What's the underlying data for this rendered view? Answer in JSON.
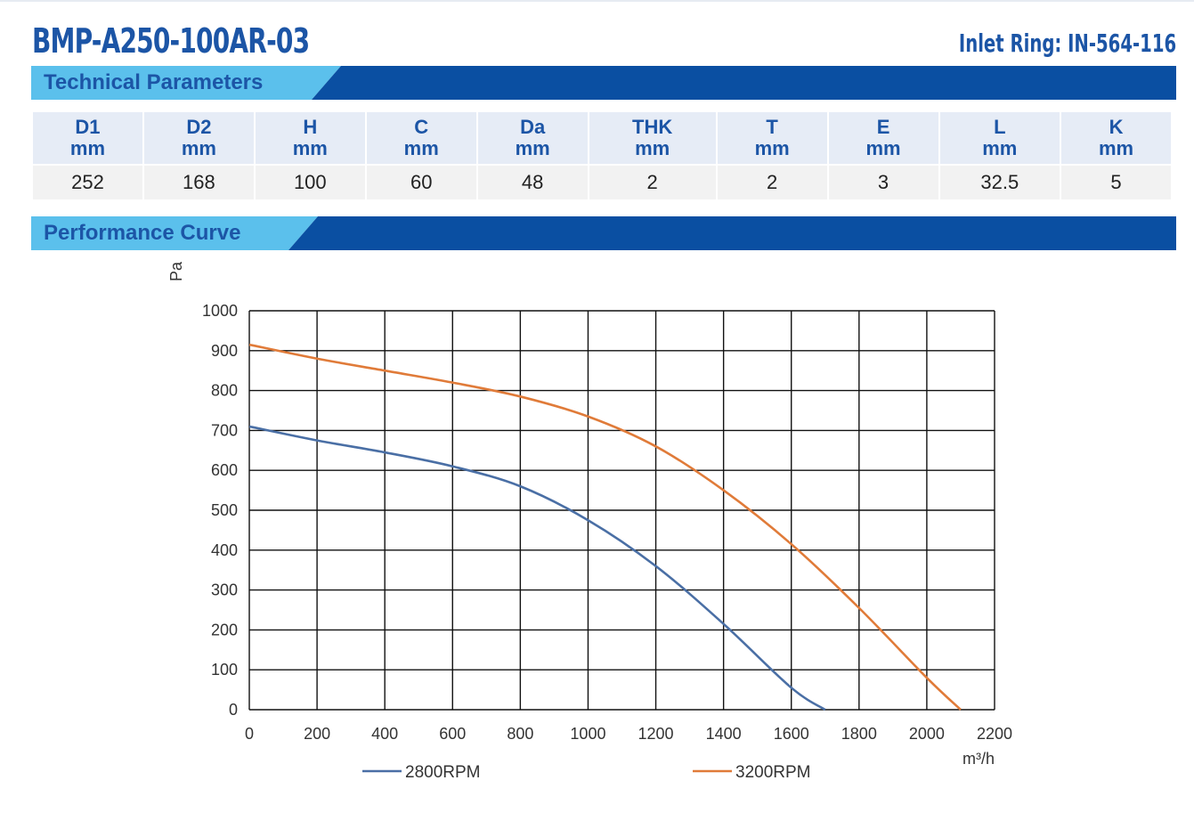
{
  "header": {
    "model": "BMP-A250-100AR-03",
    "inlet_ring": "Inlet Ring: IN-564-116"
  },
  "sections": {
    "technical": "Technical Parameters",
    "performance": "Performance Curve"
  },
  "params": {
    "columns": [
      {
        "name": "D1",
        "unit": "mm",
        "value": "252"
      },
      {
        "name": "D2",
        "unit": "mm",
        "value": "168"
      },
      {
        "name": "H",
        "unit": "mm",
        "value": "100"
      },
      {
        "name": "C",
        "unit": "mm",
        "value": "60"
      },
      {
        "name": "Da",
        "unit": "mm",
        "value": "48"
      },
      {
        "name": "THK",
        "unit": "mm",
        "value": "2"
      },
      {
        "name": "T",
        "unit": "mm",
        "value": "2"
      },
      {
        "name": "E",
        "unit": "mm",
        "value": "3"
      },
      {
        "name": "L",
        "unit": "mm",
        "value": "32.5"
      },
      {
        "name": "K",
        "unit": "mm",
        "value": "5"
      }
    ]
  },
  "colors": {
    "brand_blue": "#1c55a6",
    "band_light": "#5bc0ec",
    "band_dark": "#0a4fa2",
    "series_2800": "#4a6fa5",
    "series_3200": "#e07b39"
  },
  "chart_data": {
    "type": "line",
    "title": "",
    "xlabel": "m³/h",
    "ylabel": "Pa",
    "xlim": [
      0,
      2200
    ],
    "ylim": [
      0,
      1000
    ],
    "xticks": [
      "0",
      "200",
      "400",
      "600",
      "800",
      "1000",
      "1200",
      "1400",
      "1600",
      "1800",
      "2000",
      "2200"
    ],
    "yticks": [
      "0",
      "100",
      "200",
      "300",
      "400",
      "500",
      "600",
      "700",
      "800",
      "900",
      "1000"
    ],
    "grid": true,
    "legend": "bottom",
    "series": [
      {
        "name": "2800RPM",
        "color": "#4a6fa5",
        "x": [
          0,
          200,
          400,
          600,
          800,
          1000,
          1200,
          1400,
          1600,
          1700
        ],
        "y": [
          710,
          675,
          645,
          610,
          560,
          475,
          360,
          215,
          55,
          0
        ]
      },
      {
        "name": "3200RPM",
        "color": "#e07b39",
        "x": [
          0,
          200,
          400,
          600,
          800,
          1000,
          1200,
          1400,
          1600,
          1800,
          2000,
          2100
        ],
        "y": [
          915,
          880,
          850,
          820,
          785,
          735,
          660,
          550,
          415,
          255,
          80,
          0
        ]
      }
    ]
  }
}
